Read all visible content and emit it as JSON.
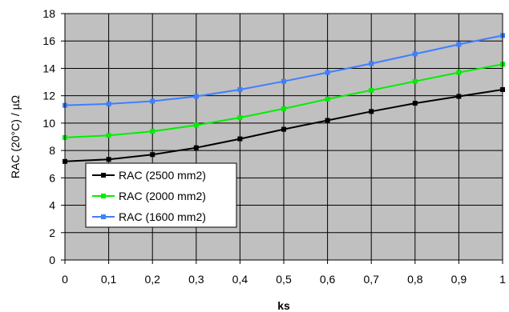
{
  "chart_data": {
    "type": "line",
    "title": "",
    "xlabel": "ks",
    "ylabel": "RAC (20°C) / µΩ",
    "xlim": [
      0,
      1
    ],
    "ylim": [
      0,
      18
    ],
    "x": [
      0,
      0.1,
      0.2,
      0.3,
      0.4,
      0.5,
      0.6,
      0.7,
      0.8,
      0.9,
      1
    ],
    "x_tick_labels": [
      "0",
      "0,1",
      "0,2",
      "0,3",
      "0,4",
      "0,5",
      "0,6",
      "0,7",
      "0,8",
      "0,9",
      "1"
    ],
    "y_ticks": [
      0,
      2,
      4,
      6,
      8,
      10,
      12,
      14,
      16,
      18
    ],
    "grid": true,
    "plot_background": "#c0c0c0",
    "legend_position": "lower-left",
    "series": [
      {
        "name": "RAC (2500 mm2)",
        "color": "#000000",
        "marker": "square",
        "values": [
          7.2,
          7.35,
          7.7,
          8.2,
          8.85,
          9.55,
          10.2,
          10.85,
          11.45,
          11.95,
          12.45
        ]
      },
      {
        "name": "RAC (2000 mm2)",
        "color": "#00ee00",
        "marker": "square",
        "values": [
          8.95,
          9.1,
          9.4,
          9.85,
          10.4,
          11.05,
          11.75,
          12.4,
          13.05,
          13.7,
          14.3
        ]
      },
      {
        "name": "RAC (1600 mm2)",
        "color": "#3f7fff",
        "marker": "square",
        "values": [
          11.3,
          11.4,
          11.6,
          11.95,
          12.45,
          13.05,
          13.7,
          14.35,
          15.05,
          15.75,
          16.4
        ]
      }
    ]
  }
}
